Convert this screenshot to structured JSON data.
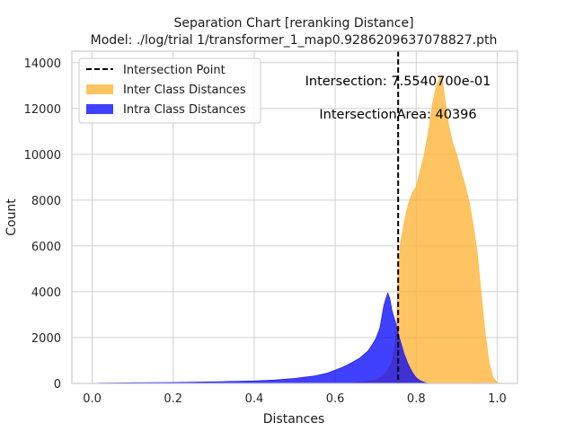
{
  "chart_data": {
    "type": "histogram",
    "title_line1": "Separation Chart [reranking Distance]",
    "title_line2": "Model: ./log/trial 1/transformer_1_map0.9286209637078827.pth",
    "xlabel": "Distances",
    "ylabel": "Count",
    "xlim": [
      -0.05,
      1.05
    ],
    "ylim": [
      0,
      14500
    ],
    "x_ticks": [
      0.0,
      0.2,
      0.4,
      0.6,
      0.8,
      1.0
    ],
    "x_tick_labels": [
      "0.0",
      "0.2",
      "0.4",
      "0.6",
      "0.8",
      "1.0"
    ],
    "y_ticks": [
      0,
      2000,
      4000,
      6000,
      8000,
      10000,
      12000,
      14000
    ],
    "y_tick_labels": [
      "0",
      "2000",
      "4000",
      "6000",
      "8000",
      "10000",
      "12000",
      "14000"
    ],
    "grid": true,
    "legend_placement": "top-left",
    "intersection_x": 0.7554,
    "annotations": {
      "intersection": "Intersection: 7.5540700e-01",
      "area": "IntersectionArea: 40396"
    },
    "series": [
      {
        "name": "Intersection Point",
        "kind": "vline",
        "color": "#000000"
      },
      {
        "name": "Inter Class Distances",
        "kind": "hist",
        "color": "#FFB02E",
        "opacity": 0.75,
        "points": [
          [
            0.6,
            0
          ],
          [
            0.65,
            30
          ],
          [
            0.7,
            150
          ],
          [
            0.72,
            350
          ],
          [
            0.74,
            900
          ],
          [
            0.75,
            2000
          ],
          [
            0.755,
            4500
          ],
          [
            0.76,
            6000
          ],
          [
            0.77,
            7000
          ],
          [
            0.78,
            7800
          ],
          [
            0.79,
            8300
          ],
          [
            0.8,
            8600
          ],
          [
            0.81,
            9300
          ],
          [
            0.82,
            10000
          ],
          [
            0.83,
            11000
          ],
          [
            0.84,
            12200
          ],
          [
            0.85,
            13000
          ],
          [
            0.86,
            13400
          ],
          [
            0.865,
            13200
          ],
          [
            0.87,
            12500
          ],
          [
            0.88,
            11300
          ],
          [
            0.89,
            10500
          ],
          [
            0.9,
            10000
          ],
          [
            0.91,
            9300
          ],
          [
            0.92,
            8700
          ],
          [
            0.93,
            8000
          ],
          [
            0.94,
            7000
          ],
          [
            0.95,
            5800
          ],
          [
            0.96,
            4000
          ],
          [
            0.97,
            2200
          ],
          [
            0.98,
            900
          ],
          [
            0.99,
            250
          ],
          [
            1.0,
            30
          ],
          [
            1.01,
            0
          ]
        ]
      },
      {
        "name": "Intra Class Distances",
        "kind": "hist",
        "color": "#0000FF",
        "opacity": 0.75,
        "points": [
          [
            0.0,
            0
          ],
          [
            0.02,
            20
          ],
          [
            0.1,
            30
          ],
          [
            0.2,
            40
          ],
          [
            0.3,
            70
          ],
          [
            0.4,
            110
          ],
          [
            0.45,
            150
          ],
          [
            0.5,
            220
          ],
          [
            0.55,
            330
          ],
          [
            0.58,
            450
          ],
          [
            0.6,
            580
          ],
          [
            0.62,
            720
          ],
          [
            0.64,
            900
          ],
          [
            0.66,
            1100
          ],
          [
            0.68,
            1400
          ],
          [
            0.69,
            1650
          ],
          [
            0.7,
            1950
          ],
          [
            0.71,
            2400
          ],
          [
            0.715,
            2900
          ],
          [
            0.72,
            3400
          ],
          [
            0.725,
            3700
          ],
          [
            0.73,
            3950
          ],
          [
            0.735,
            3700
          ],
          [
            0.74,
            3200
          ],
          [
            0.75,
            2600
          ],
          [
            0.76,
            1900
          ],
          [
            0.77,
            1300
          ],
          [
            0.78,
            850
          ],
          [
            0.79,
            500
          ],
          [
            0.8,
            250
          ],
          [
            0.81,
            120
          ],
          [
            0.82,
            50
          ],
          [
            0.83,
            0
          ]
        ]
      }
    ]
  }
}
